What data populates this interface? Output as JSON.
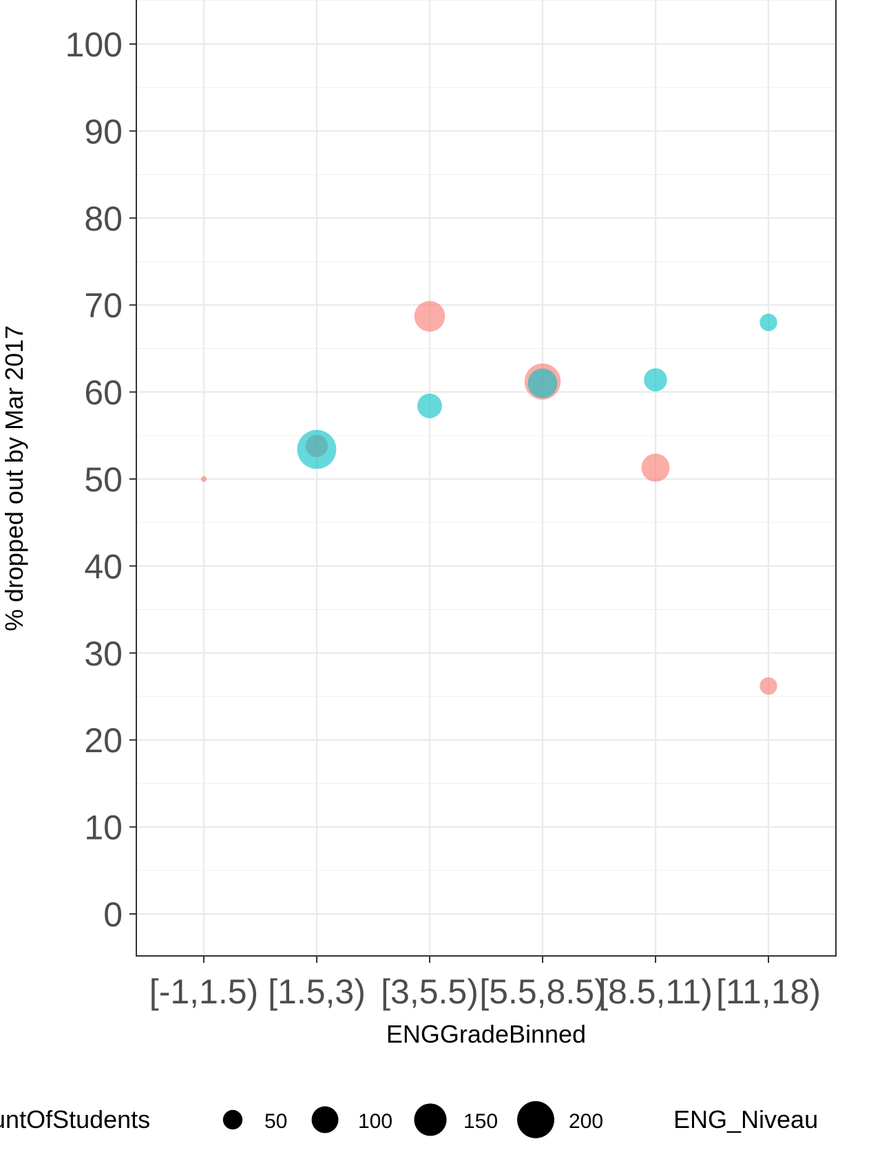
{
  "chart_data": {
    "type": "scatter",
    "title": "",
    "xlabel": "ENGGradeBinned",
    "ylabel": "% dropped out by Mar 2017",
    "categories": [
      "[-1,1.5)",
      "[1.5,3)",
      "[3,5.5)",
      "[5.5,8.5)",
      "[8.5,11)",
      "[11,18)"
    ],
    "ylim": [
      -5,
      105
    ],
    "yticks": [
      0,
      10,
      20,
      30,
      40,
      50,
      60,
      70,
      80,
      90,
      100
    ],
    "grid": true,
    "series": [
      {
        "color": "#F8766D",
        "points": [
          {
            "x": "[-1,1.5)",
            "y": 50.0,
            "size": 2
          },
          {
            "x": "[1.5,3)",
            "y": 53.8,
            "size": 60
          },
          {
            "x": "[3,5.5)",
            "y": 68.7,
            "size": 120
          },
          {
            "x": "[5.5,8.5)",
            "y": 61.2,
            "size": 170
          },
          {
            "x": "[8.5,11)",
            "y": 51.3,
            "size": 100
          },
          {
            "x": "[11,18)",
            "y": 26.2,
            "size": 35
          }
        ]
      },
      {
        "color": "#00BFC4",
        "points": [
          {
            "x": "[1.5,3)",
            "y": 53.4,
            "size": 200
          },
          {
            "x": "[3,5.5)",
            "y": 58.4,
            "size": 75
          },
          {
            "x": "[5.5,8.5)",
            "y": 61.0,
            "size": 110
          },
          {
            "x": "[8.5,11)",
            "y": 61.4,
            "size": 65
          },
          {
            "x": "[11,18)",
            "y": 68.0,
            "size": 35
          }
        ]
      }
    ],
    "legend": {
      "placement": "bottom",
      "size_title": "CountOfStudents",
      "size_entries": [
        {
          "label": "50",
          "size": 50
        },
        {
          "label": "100",
          "size": 100
        },
        {
          "label": "150",
          "size": 150
        },
        {
          "label": "200",
          "size": 200
        }
      ],
      "color_title": "ENG_Niveau"
    }
  }
}
